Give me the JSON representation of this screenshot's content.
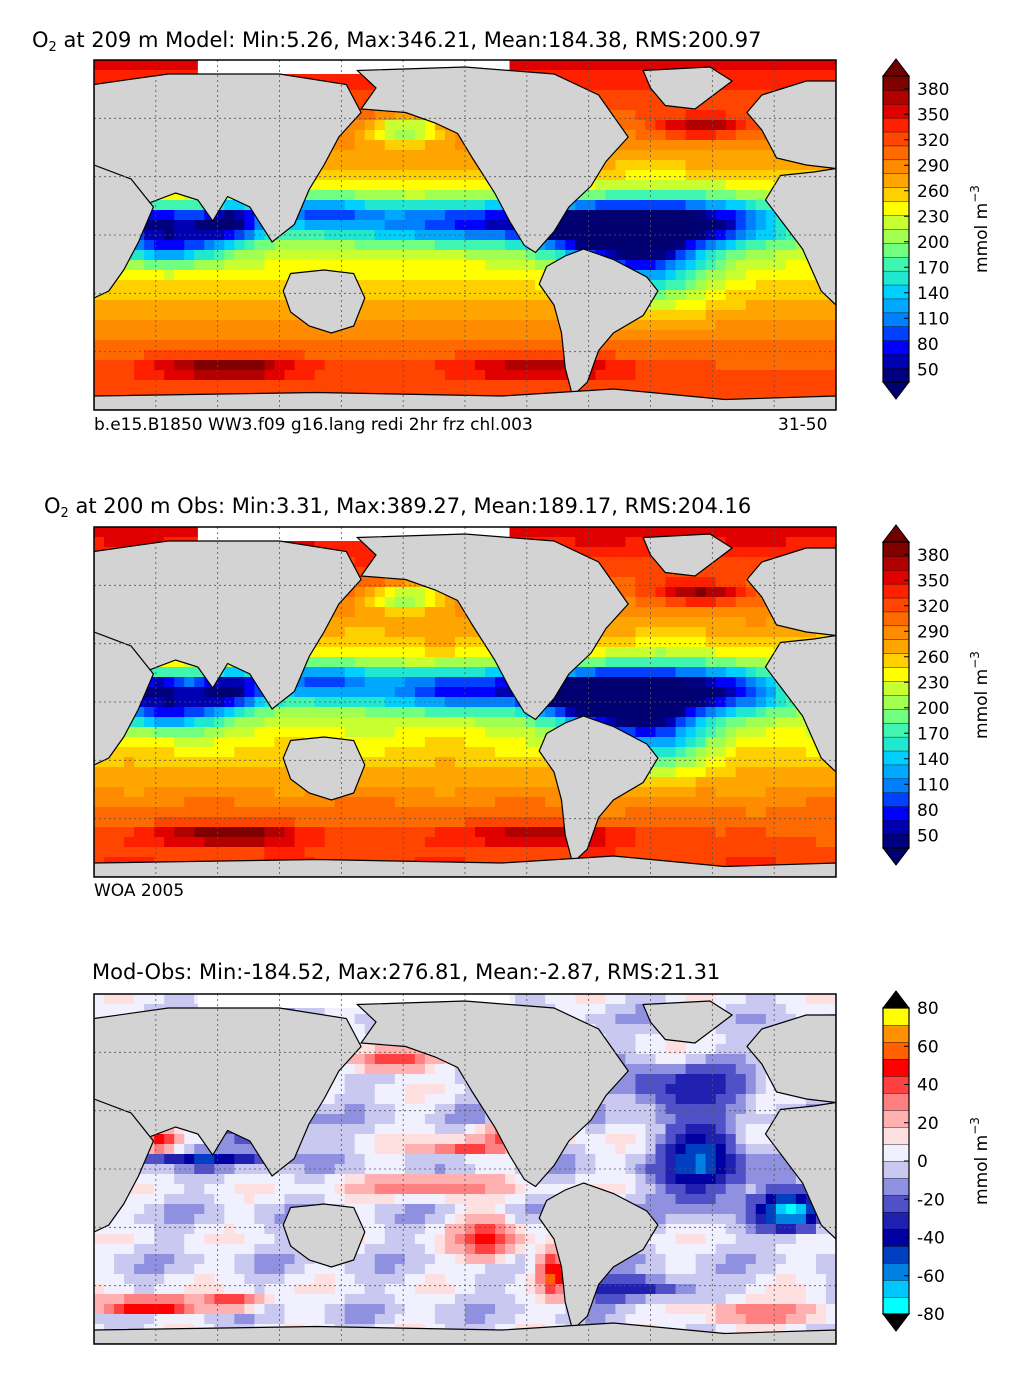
{
  "figure": {
    "background": "#ffffff",
    "land_color": "#d3d3d3"
  },
  "chart_data": [
    {
      "type": "heatmap",
      "variable_prefix": "O",
      "variable_sub": "2",
      "title_rest": "at 209 m Model: Min:5.26, Max:346.21, Mean:184.38, RMS:200.97",
      "stats": {
        "depth_m": 209,
        "min": 5.26,
        "max": 346.21,
        "mean": 184.38,
        "rms": 200.97
      },
      "footer_left": "b.e15.B1850 WW3.f09 g16.lang redi 2hr frz chl.003",
      "footer_right": "31-50",
      "colorbar": {
        "label": "mmol m",
        "label_exp": "−3",
        "ticks": [
          "50",
          "80",
          "110",
          "140",
          "170",
          "200",
          "230",
          "260",
          "290",
          "320",
          "350",
          "380"
        ],
        "levels": [
          35,
          50,
          65,
          80,
          95,
          110,
          125,
          140,
          155,
          170,
          185,
          200,
          215,
          230,
          245,
          260,
          275,
          290,
          305,
          320,
          335,
          350,
          365,
          380,
          395
        ],
        "colors": [
          "#00007f",
          "#0000b3",
          "#0000ff",
          "#0040ff",
          "#0080ff",
          "#00a8ff",
          "#00d0ff",
          "#20e8d0",
          "#40f5b0",
          "#70ff80",
          "#a0ff50",
          "#c8ff30",
          "#ffff00",
          "#ffd000",
          "#ffa500",
          "#ff8c00",
          "#ff6a00",
          "#ff4500",
          "#ff2000",
          "#e00000",
          "#b00000",
          "#800000"
        ],
        "under_color": "#000070",
        "over_color": "#700000",
        "extend": "both"
      }
    },
    {
      "type": "heatmap",
      "variable_prefix": "O",
      "variable_sub": "2",
      "title_rest": "at 200 m Obs: Min:3.31, Max:389.27, Mean:189.17, RMS:204.16",
      "stats": {
        "depth_m": 200,
        "min": 3.31,
        "max": 389.27,
        "mean": 189.17,
        "rms": 204.16
      },
      "footer_left": "WOA 2005",
      "colorbar": {
        "label": "mmol m",
        "label_exp": "−3",
        "ticks": [
          "50",
          "80",
          "110",
          "140",
          "170",
          "200",
          "230",
          "260",
          "290",
          "320",
          "350",
          "380"
        ],
        "levels": [
          35,
          50,
          65,
          80,
          95,
          110,
          125,
          140,
          155,
          170,
          185,
          200,
          215,
          230,
          245,
          260,
          275,
          290,
          305,
          320,
          335,
          350,
          365,
          380,
          395
        ],
        "colors": [
          "#00007f",
          "#0000b3",
          "#0000ff",
          "#0040ff",
          "#0080ff",
          "#00a8ff",
          "#00d0ff",
          "#20e8d0",
          "#40f5b0",
          "#70ff80",
          "#a0ff50",
          "#c8ff30",
          "#ffff00",
          "#ffd000",
          "#ffa500",
          "#ff8c00",
          "#ff6a00",
          "#ff4500",
          "#ff2000",
          "#e00000",
          "#b00000",
          "#800000"
        ],
        "under_color": "#000070",
        "over_color": "#700000",
        "extend": "both"
      }
    },
    {
      "type": "heatmap",
      "title": "Mod-Obs: Min:-184.52, Max:276.81, Mean:-2.87, RMS:21.31",
      "stats": {
        "min": -184.52,
        "max": 276.81,
        "mean": -2.87,
        "rms": 21.31
      },
      "colorbar": {
        "label": "mmol m",
        "label_exp": "−3",
        "ticks": [
          "-80",
          "-60",
          "-40",
          "-20",
          "0",
          "20",
          "40",
          "60",
          "80"
        ],
        "levels": [
          -80,
          -70,
          -60,
          -50,
          -40,
          -30,
          -20,
          -10,
          -5,
          0,
          5,
          10,
          20,
          30,
          40,
          50,
          60,
          70,
          80
        ],
        "colors": [
          "#00ffff",
          "#00c8ff",
          "#0080e0",
          "#0040c0",
          "#0000a0",
          "#2020b0",
          "#5050c8",
          "#9090e0",
          "#c8c8f0",
          "#f0f0ff",
          "#ffe0e0",
          "#ffb0b0",
          "#ff8080",
          "#ff4040",
          "#ff0000",
          "#ff6000",
          "#ff9000",
          "#ffff00"
        ],
        "under_color": "#000000",
        "over_color": "#000000",
        "extend": "both"
      }
    }
  ]
}
